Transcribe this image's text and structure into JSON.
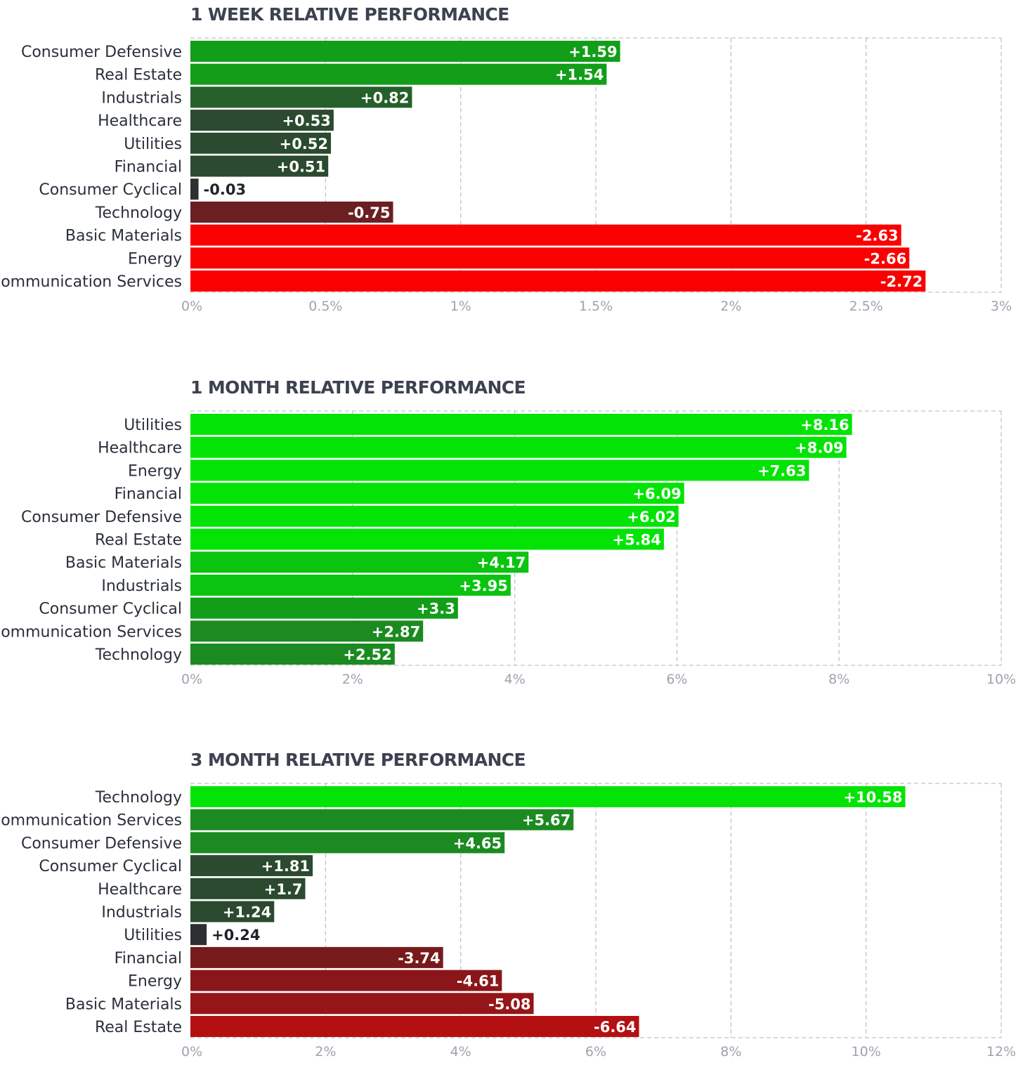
{
  "chart_data": [
    {
      "type": "bar",
      "orientation": "horizontal",
      "title": "1 WEEK RELATIVE PERFORMANCE",
      "categories": [
        "Consumer Defensive",
        "Real Estate",
        "Industrials",
        "Healthcare",
        "Utilities",
        "Financial",
        "Consumer Cyclical",
        "Technology",
        "Basic Materials",
        "Energy",
        "Communication Services"
      ],
      "values": [
        1.59,
        1.54,
        0.82,
        0.53,
        0.52,
        0.51,
        -0.03,
        -0.75,
        -2.63,
        -2.66,
        -2.72
      ],
      "value_labels": [
        "+1.59",
        "+1.54",
        "+0.82",
        "+0.53",
        "+0.52",
        "+0.51",
        "-0.03",
        "-0.75",
        "-2.63",
        "-2.66",
        "-2.72"
      ],
      "bar_colors": [
        "#129e18",
        "#129e18",
        "#25602b",
        "#2b4a2f",
        "#2b4a2f",
        "#2b4a2f",
        "#2e2f33",
        "#6b1f22",
        "#fb0001",
        "#fb0001",
        "#fb0001"
      ],
      "bar_length": "absolute value",
      "xlim": [
        0,
        3
      ],
      "xticks": [
        "0%",
        "0.5%",
        "1%",
        "1.5%",
        "2%",
        "2.5%",
        "3%"
      ],
      "grid": true
    },
    {
      "type": "bar",
      "orientation": "horizontal",
      "title": "1 MONTH RELATIVE PERFORMANCE",
      "categories": [
        "Utilities",
        "Healthcare",
        "Energy",
        "Financial",
        "Consumer Defensive",
        "Real Estate",
        "Basic Materials",
        "Industrials",
        "Consumer Cyclical",
        "Communication Services",
        "Technology"
      ],
      "values": [
        8.16,
        8.09,
        7.63,
        6.09,
        6.02,
        5.84,
        4.17,
        3.95,
        3.3,
        2.87,
        2.52
      ],
      "value_labels": [
        "+8.16",
        "+8.09",
        "+7.63",
        "+6.09",
        "+6.02",
        "+5.84",
        "+4.17",
        "+3.95",
        "+3.3",
        "+2.87",
        "+2.52"
      ],
      "bar_colors": [
        "#03e406",
        "#03e406",
        "#03e406",
        "#03e406",
        "#03e406",
        "#03e406",
        "#0ac40f",
        "#0ac40f",
        "#129e18",
        "#1b8a21",
        "#1b8a21"
      ],
      "bar_length": "absolute value",
      "xlim": [
        0,
        10
      ],
      "xticks": [
        "0%",
        "2%",
        "4%",
        "6%",
        "8%",
        "10%"
      ],
      "grid": true
    },
    {
      "type": "bar",
      "orientation": "horizontal",
      "title": "3 MONTH RELATIVE PERFORMANCE",
      "categories": [
        "Technology",
        "Communication Services",
        "Consumer Defensive",
        "Consumer Cyclical",
        "Healthcare",
        "Industrials",
        "Utilities",
        "Financial",
        "Energy",
        "Basic Materials",
        "Real Estate"
      ],
      "values": [
        10.58,
        5.67,
        4.65,
        1.81,
        1.7,
        1.24,
        0.24,
        -3.74,
        -4.61,
        -5.08,
        -6.64
      ],
      "value_labels": [
        "+10.58",
        "+5.67",
        "+4.65",
        "+1.81",
        "+1.7",
        "+1.24",
        "+0.24",
        "-3.74",
        "-4.61",
        "-5.08",
        "-6.64"
      ],
      "bar_colors": [
        "#03e406",
        "#1b8a21",
        "#1b8a21",
        "#2b4a2f",
        "#2b4a2f",
        "#2b4a2f",
        "#2e2f33",
        "#781a1c",
        "#8a1619",
        "#951518",
        "#b41012"
      ],
      "bar_length": "absolute value",
      "xlim": [
        0,
        12
      ],
      "xticks": [
        "0%",
        "2%",
        "4%",
        "6%",
        "8%",
        "10%",
        "12%"
      ],
      "grid": true
    }
  ]
}
